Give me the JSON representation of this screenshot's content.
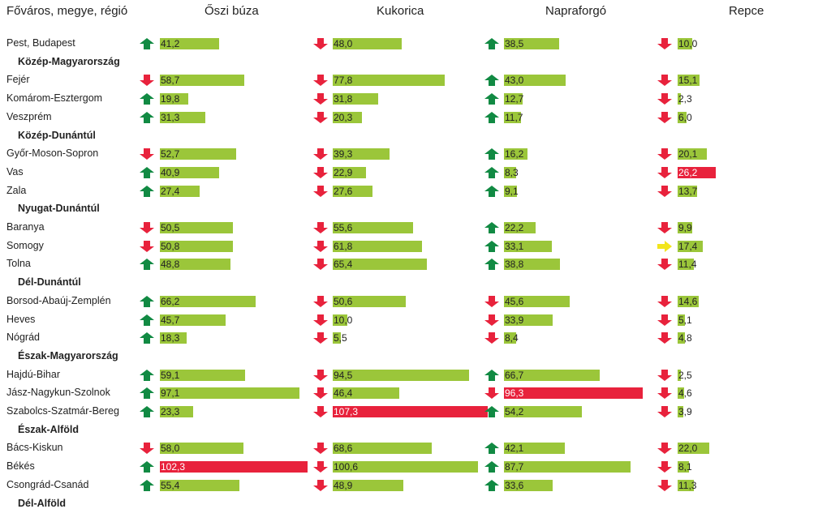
{
  "header": {
    "region_col": "Főváros, megye, régió",
    "crops": [
      "Őszi búza",
      "Kukorica",
      "Napraforgó",
      "Repce"
    ]
  },
  "colors": {
    "green_bar": "#9bc63a",
    "red_bar": "#e8223c",
    "up": "#118a43",
    "down": "#e8223c",
    "flat": "#f2e51d"
  },
  "chart_data": {
    "type": "bar",
    "title": "",
    "series_names": [
      "Őszi búza",
      "Kukorica",
      "Napraforgó",
      "Repce"
    ],
    "rows": [
      {
        "label": "Pest, Budapest",
        "region": false,
        "values": [
          "41,2",
          "48,0",
          "38,5",
          "10,0"
        ],
        "nums": [
          41.2,
          48.0,
          38.5,
          10.0
        ],
        "trend": [
          "up",
          "down",
          "up",
          "down"
        ],
        "highlight": [
          false,
          false,
          false,
          false
        ]
      },
      {
        "label": "Közép-Magyarország",
        "region": true
      },
      {
        "label": "Fejér",
        "region": false,
        "values": [
          "58,7",
          "77,8",
          "43,0",
          "15,1"
        ],
        "nums": [
          58.7,
          77.8,
          43.0,
          15.1
        ],
        "trend": [
          "down",
          "down",
          "up",
          "down"
        ],
        "highlight": [
          false,
          false,
          false,
          false
        ]
      },
      {
        "label": "Komárom-Esztergom",
        "region": false,
        "values": [
          "19,8",
          "31,8",
          "12,7",
          "2,3"
        ],
        "nums": [
          19.8,
          31.8,
          12.7,
          2.3
        ],
        "trend": [
          "up",
          "down",
          "up",
          "down"
        ],
        "highlight": [
          false,
          false,
          false,
          false
        ]
      },
      {
        "label": "Veszprém",
        "region": false,
        "values": [
          "31,3",
          "20,3",
          "11,7",
          "6,0"
        ],
        "nums": [
          31.3,
          20.3,
          11.7,
          6.0
        ],
        "trend": [
          "up",
          "down",
          "up",
          "down"
        ],
        "highlight": [
          false,
          false,
          false,
          false
        ]
      },
      {
        "label": "Közép-Dunántúl",
        "region": true
      },
      {
        "label": "Győr-Moson-Sopron",
        "region": false,
        "values": [
          "52,7",
          "39,3",
          "16,2",
          "20,1"
        ],
        "nums": [
          52.7,
          39.3,
          16.2,
          20.1
        ],
        "trend": [
          "down",
          "down",
          "up",
          "down"
        ],
        "highlight": [
          false,
          false,
          false,
          false
        ]
      },
      {
        "label": "Vas",
        "region": false,
        "values": [
          "40,9",
          "22,9",
          "8,3",
          "26,2"
        ],
        "nums": [
          40.9,
          22.9,
          8.3,
          26.2
        ],
        "trend": [
          "up",
          "down",
          "up",
          "down"
        ],
        "highlight": [
          false,
          false,
          false,
          true
        ]
      },
      {
        "label": "Zala",
        "region": false,
        "values": [
          "27,4",
          "27,6",
          "9,1",
          "13,7"
        ],
        "nums": [
          27.4,
          27.6,
          9.1,
          13.7
        ],
        "trend": [
          "up",
          "down",
          "up",
          "down"
        ],
        "highlight": [
          false,
          false,
          false,
          false
        ]
      },
      {
        "label": "Nyugat-Dunántúl",
        "region": true
      },
      {
        "label": "Baranya",
        "region": false,
        "values": [
          "50,5",
          "55,6",
          "22,2",
          "9,9"
        ],
        "nums": [
          50.5,
          55.6,
          22.2,
          9.9
        ],
        "trend": [
          "down",
          "down",
          "up",
          "down"
        ],
        "highlight": [
          false,
          false,
          false,
          false
        ]
      },
      {
        "label": "Somogy",
        "region": false,
        "values": [
          "50,8",
          "61,8",
          "33,1",
          "17,4"
        ],
        "nums": [
          50.8,
          61.8,
          33.1,
          17.4
        ],
        "trend": [
          "down",
          "down",
          "up",
          "flat"
        ],
        "highlight": [
          false,
          false,
          false,
          false
        ]
      },
      {
        "label": "Tolna",
        "region": false,
        "values": [
          "48,8",
          "65,4",
          "38,8",
          "11,4"
        ],
        "nums": [
          48.8,
          65.4,
          38.8,
          11.4
        ],
        "trend": [
          "up",
          "down",
          "up",
          "down"
        ],
        "highlight": [
          false,
          false,
          false,
          false
        ]
      },
      {
        "label": "Dél-Dunántúl",
        "region": true
      },
      {
        "label": "Borsod-Abaúj-Zemplén",
        "region": false,
        "values": [
          "66,2",
          "50,6",
          "45,6",
          "14,6"
        ],
        "nums": [
          66.2,
          50.6,
          45.6,
          14.6
        ],
        "trend": [
          "up",
          "down",
          "down",
          "down"
        ],
        "highlight": [
          false,
          false,
          false,
          false
        ]
      },
      {
        "label": "Heves",
        "region": false,
        "values": [
          "45,7",
          "10,0",
          "33,9",
          "5,1"
        ],
        "nums": [
          45.7,
          10.0,
          33.9,
          5.1
        ],
        "trend": [
          "up",
          "down",
          "down",
          "down"
        ],
        "highlight": [
          false,
          false,
          false,
          false
        ]
      },
      {
        "label": "Nógrád",
        "region": false,
        "values": [
          "18,3",
          "5,5",
          "8,4",
          "4,8"
        ],
        "nums": [
          18.3,
          5.5,
          8.4,
          4.8
        ],
        "trend": [
          "up",
          "down",
          "down",
          "down"
        ],
        "highlight": [
          false,
          false,
          false,
          false
        ]
      },
      {
        "label": "Észak-Magyarország",
        "region": true
      },
      {
        "label": "Hajdú-Bihar",
        "region": false,
        "values": [
          "59,1",
          "94,5",
          "66,7",
          "2,5"
        ],
        "nums": [
          59.1,
          94.5,
          66.7,
          2.5
        ],
        "trend": [
          "up",
          "down",
          "up",
          "down"
        ],
        "highlight": [
          false,
          false,
          false,
          false
        ]
      },
      {
        "label": "Jász-Nagykun-Szolnok",
        "region": false,
        "values": [
          "97,1",
          "46,4",
          "96,3",
          "4,6"
        ],
        "nums": [
          97.1,
          46.4,
          96.3,
          4.6
        ],
        "trend": [
          "up",
          "down",
          "down",
          "down"
        ],
        "highlight": [
          false,
          false,
          true,
          false
        ]
      },
      {
        "label": "Szabolcs-Szatmár-Bereg",
        "region": false,
        "values": [
          "23,3",
          "107,3",
          "54,2",
          "3,9"
        ],
        "nums": [
          23.3,
          107.3,
          54.2,
          3.9
        ],
        "trend": [
          "up",
          "down",
          "up",
          "down"
        ],
        "highlight": [
          false,
          true,
          false,
          false
        ]
      },
      {
        "label": "Észak-Alföld",
        "region": true
      },
      {
        "label": "Bács-Kiskun",
        "region": false,
        "values": [
          "58,0",
          "68,6",
          "42,1",
          "22,0"
        ],
        "nums": [
          58.0,
          68.6,
          42.1,
          22.0
        ],
        "trend": [
          "down",
          "down",
          "up",
          "down"
        ],
        "highlight": [
          false,
          false,
          false,
          false
        ]
      },
      {
        "label": "Békés",
        "region": false,
        "values": [
          "102,3",
          "100,6",
          "87,7",
          "8,1"
        ],
        "nums": [
          102.3,
          100.6,
          87.7,
          8.1
        ],
        "trend": [
          "up",
          "down",
          "up",
          "down"
        ],
        "highlight": [
          true,
          false,
          false,
          false
        ]
      },
      {
        "label": "Csongrád-Csanád",
        "region": false,
        "values": [
          "55,4",
          "48,9",
          "33,6",
          "11,3"
        ],
        "nums": [
          55.4,
          48.9,
          33.6,
          11.3
        ],
        "trend": [
          "up",
          "down",
          "up",
          "down"
        ],
        "highlight": [
          false,
          false,
          false,
          false
        ]
      },
      {
        "label": "Dél-Alföld",
        "region": true
      }
    ]
  }
}
